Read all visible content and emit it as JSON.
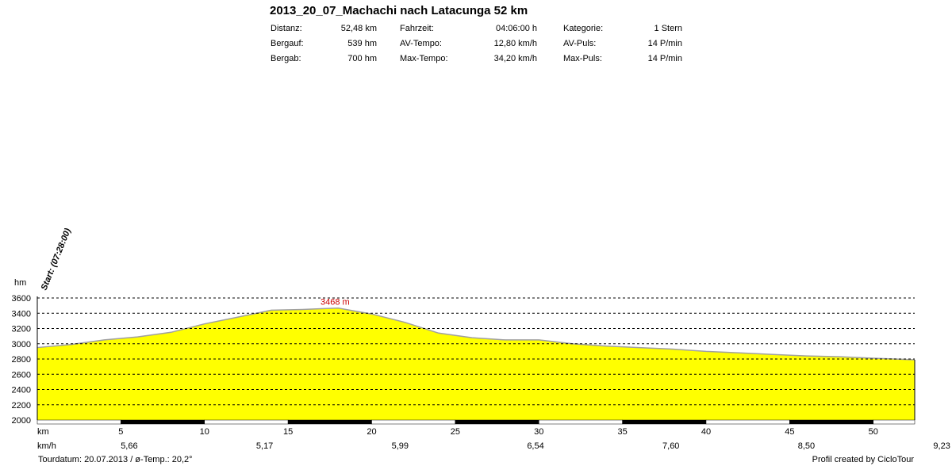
{
  "header": {
    "title": "2013_20_07_Machachi nach Latacunga 52 km",
    "stats": [
      {
        "label": "Distanz:",
        "value": "52,48 km"
      },
      {
        "label": "Bergauf:",
        "value": "539 hm"
      },
      {
        "label": "Bergab:",
        "value": "700 hm"
      },
      {
        "label": "Fahrzeit:",
        "value": "04:06:00 h"
      },
      {
        "label": "AV-Tempo:",
        "value": "12,80 km/h"
      },
      {
        "label": "Max-Tempo:",
        "value": "34,20 km/h"
      },
      {
        "label": "Kategorie:",
        "value": "1 Stern"
      },
      {
        "label": "AV-Puls:",
        "value": "14 P/min"
      },
      {
        "label": "Max-Puls:",
        "value": "14 P/min"
      }
    ]
  },
  "footer": {
    "left": "Tourdatum: 20.07.2013  /  ø-Temp.: 20,2°",
    "right": "Profil created by CicloTour"
  },
  "colors": {
    "fill": "#ffff00",
    "outline": "#a0a0a0",
    "peak_label": "#cc0000"
  },
  "chart_data": {
    "type": "area",
    "title": "2013_20_07_Machachi nach Latacunga 52 km",
    "ylabel": "hm",
    "xlabel": "km",
    "ylim": [
      2000,
      3600
    ],
    "xlim": [
      0,
      52.48
    ],
    "yticks": [
      "2000",
      "2200",
      "2400",
      "2600",
      "2800",
      "3000",
      "3200",
      "3400",
      "3600"
    ],
    "xticks": [
      "5",
      "10",
      "15",
      "20",
      "25",
      "30",
      "35",
      "40",
      "45",
      "50"
    ],
    "grid": true,
    "start_annotation": "Start: (07:28:00)",
    "peak": {
      "x": 18.0,
      "y": 3468,
      "label": "3468 m"
    },
    "x": [
      0,
      2,
      4,
      6,
      8,
      10,
      12,
      14,
      16,
      17,
      18,
      20,
      22,
      24,
      26,
      28,
      30,
      32,
      34,
      36,
      38,
      40,
      42,
      44,
      46,
      48,
      50,
      52.48
    ],
    "y": [
      2950,
      2990,
      3050,
      3090,
      3150,
      3260,
      3350,
      3440,
      3450,
      3460,
      3468,
      3390,
      3280,
      3140,
      3080,
      3050,
      3050,
      3000,
      2970,
      2950,
      2930,
      2900,
      2880,
      2860,
      2840,
      2830,
      2810,
      2790
    ],
    "speed_row_label": "km/h",
    "speed_values": [
      "5,66",
      "5,17",
      "5,99",
      "6,54",
      "7,60",
      "8,50",
      "9,23"
    ]
  }
}
